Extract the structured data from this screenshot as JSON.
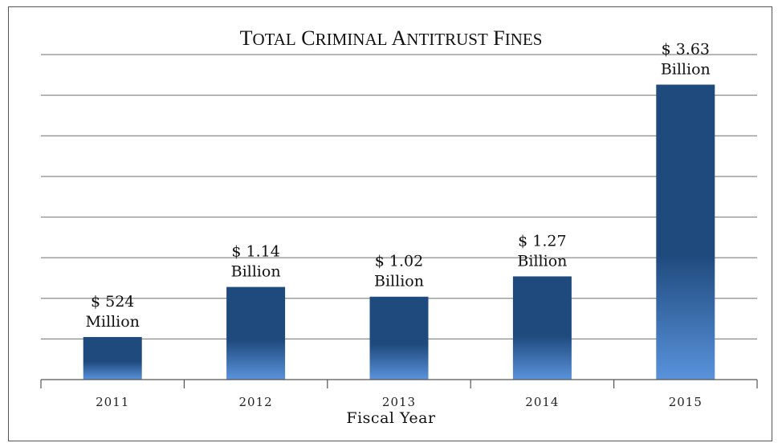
{
  "chart_data": {
    "type": "bar",
    "title": "Total Criminal Antitrust Fines",
    "xlabel": "Fiscal Year",
    "ylabel": "",
    "categories": [
      "2011",
      "2012",
      "2013",
      "2014",
      "2015"
    ],
    "values": [
      0.524,
      1.14,
      1.02,
      1.27,
      3.63
    ],
    "value_units": "billion USD",
    "data_labels": [
      [
        "$ 524",
        "Million"
      ],
      [
        "$ 1.14",
        "Billion"
      ],
      [
        "$ 1.02",
        "Billion"
      ],
      [
        "$ 1.27",
        "Billion"
      ],
      [
        "$ 3.63",
        "Billion"
      ]
    ],
    "ylim": [
      0,
      4.0
    ],
    "y_gridline_step": 0.5,
    "y_tick_labels_shown": false,
    "grid": true,
    "legend": "none",
    "colors": {
      "bar_top": "#1f4a7e",
      "bar_bottom": "#5a93dc",
      "gridline": "#8c8c8c",
      "axis": "#555555",
      "border": "#555555"
    }
  }
}
